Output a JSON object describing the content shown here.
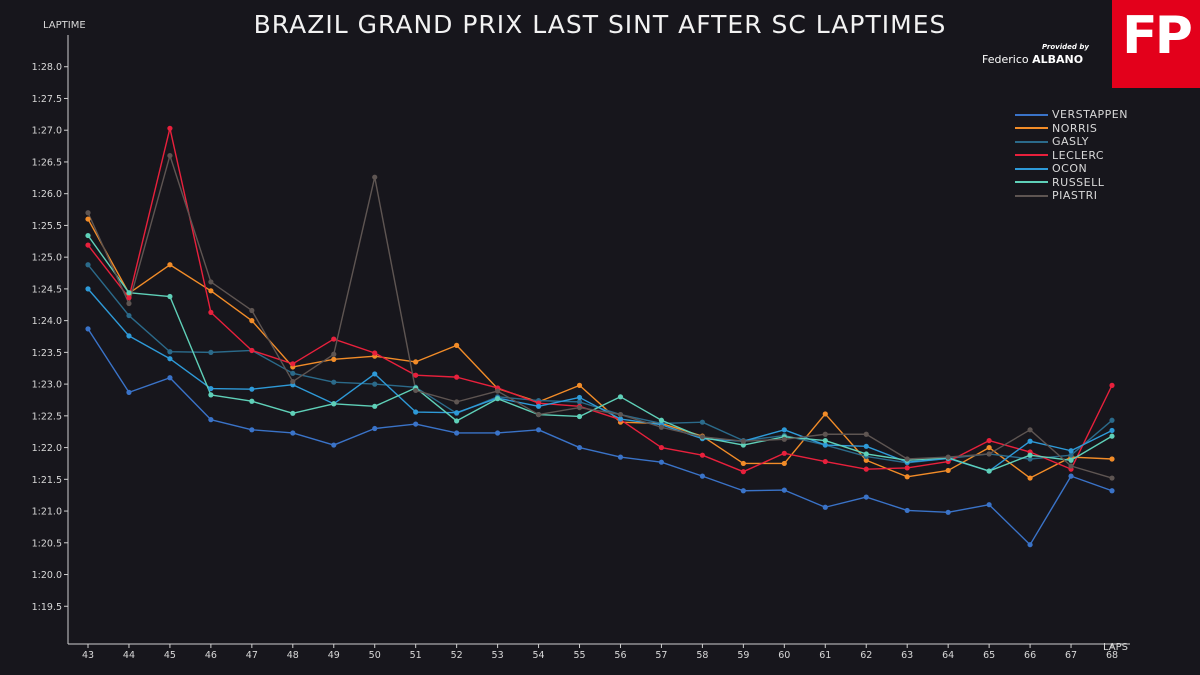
{
  "header": {
    "title": "BRAZIL GRAND PRIX LAST SINT AFTER SC LAPTIMES",
    "credit_small": "Provided by",
    "credit_first": "Federico ",
    "credit_last": "ALBANO",
    "logo_text": "FP"
  },
  "colors": {
    "background": "#17161c",
    "logo": "#e3001b",
    "axis": "#cfcfcf"
  },
  "chart_data": {
    "type": "line",
    "title": "BRAZIL GRAND PRIX LAST SINT AFTER SC LAPTIMES",
    "xlabel": "LAPS",
    "ylabel": "LAPTIME",
    "x": [
      43,
      44,
      45,
      46,
      47,
      48,
      49,
      50,
      51,
      52,
      53,
      54,
      55,
      56,
      57,
      58,
      59,
      60,
      61,
      62,
      63,
      64,
      65,
      66,
      67,
      68
    ],
    "x_ticks": [
      "43",
      "44",
      "45",
      "46",
      "47",
      "48",
      "49",
      "50",
      "51",
      "52",
      "53",
      "54",
      "55",
      "56",
      "57",
      "58",
      "59",
      "60",
      "61",
      "62",
      "63",
      "64",
      "65",
      "66",
      "67",
      "68"
    ],
    "ylim": [
      79.0,
      88.5
    ],
    "y_ticks": [
      {
        "value": 79.5,
        "label": "1:19.5"
      },
      {
        "value": 80.0,
        "label": "1:20.0"
      },
      {
        "value": 80.5,
        "label": "1:20.5"
      },
      {
        "value": 81.0,
        "label": "1:21.0"
      },
      {
        "value": 81.5,
        "label": "1:21.5"
      },
      {
        "value": 82.0,
        "label": "1:22.0"
      },
      {
        "value": 82.5,
        "label": "1:22.5"
      },
      {
        "value": 83.0,
        "label": "1:23.0"
      },
      {
        "value": 83.5,
        "label": "1:23.5"
      },
      {
        "value": 84.0,
        "label": "1:24.0"
      },
      {
        "value": 84.5,
        "label": "1:24.5"
      },
      {
        "value": 85.0,
        "label": "1:25.0"
      },
      {
        "value": 85.5,
        "label": "1:25.5"
      },
      {
        "value": 86.0,
        "label": "1:26.0"
      },
      {
        "value": 86.5,
        "label": "1:26.5"
      },
      {
        "value": 87.0,
        "label": "1:27.0"
      },
      {
        "value": 87.5,
        "label": "1:27.5"
      },
      {
        "value": 88.0,
        "label": "1:28.0"
      }
    ],
    "grid": false,
    "legend_position": "top-right",
    "series": [
      {
        "name": "VERSTAPPEN",
        "color": "#3a73c8",
        "values": [
          83.87,
          82.87,
          83.1,
          82.44,
          82.28,
          82.23,
          82.04,
          82.3,
          82.37,
          82.23,
          82.23,
          82.28,
          82.0,
          81.85,
          81.77,
          81.55,
          81.32,
          81.33,
          81.06,
          81.22,
          81.01,
          80.98,
          81.1,
          80.47,
          81.55,
          81.32
        ]
      },
      {
        "name": "NORRIS",
        "color": "#f28c28",
        "values": [
          85.6,
          84.43,
          84.88,
          84.47,
          84.0,
          83.27,
          83.39,
          83.44,
          83.35,
          83.61,
          82.93,
          82.72,
          82.98,
          82.4,
          82.38,
          82.18,
          81.75,
          81.75,
          82.53,
          81.8,
          81.54,
          81.64,
          82.0,
          81.52,
          81.85,
          81.82
        ]
      },
      {
        "name": "GASLY",
        "color": "#2b6a8a",
        "values": [
          84.88,
          84.08,
          83.51,
          83.5,
          83.53,
          83.17,
          83.03,
          83.0,
          82.95,
          82.54,
          82.8,
          82.74,
          82.72,
          82.52,
          82.38,
          82.4,
          82.11,
          82.19,
          82.04,
          81.86,
          81.76,
          81.83,
          81.9,
          81.82,
          81.88,
          82.43
        ]
      },
      {
        "name": "LECLERC",
        "color": "#e8203c",
        "values": [
          85.19,
          84.36,
          87.03,
          84.13,
          83.53,
          83.32,
          83.71,
          83.49,
          83.14,
          83.11,
          82.94,
          82.7,
          82.65,
          82.44,
          82.0,
          81.88,
          81.62,
          81.91,
          81.78,
          81.66,
          81.68,
          81.78,
          82.11,
          81.93,
          81.66,
          82.98
        ]
      },
      {
        "name": "OCON",
        "color": "#2e9ad8",
        "values": [
          84.5,
          83.76,
          83.4,
          82.93,
          82.92,
          82.99,
          82.69,
          83.16,
          82.56,
          82.55,
          82.78,
          82.65,
          82.79,
          82.45,
          82.36,
          82.14,
          82.1,
          82.28,
          82.04,
          82.02,
          81.77,
          81.83,
          81.63,
          82.1,
          81.95,
          82.27
        ]
      },
      {
        "name": "RUSSELL",
        "color": "#5fd0b8",
        "values": [
          85.34,
          84.44,
          84.38,
          82.83,
          82.73,
          82.54,
          82.69,
          82.65,
          82.94,
          82.42,
          82.77,
          82.52,
          82.49,
          82.8,
          82.43,
          82.16,
          82.04,
          82.17,
          82.11,
          81.9,
          81.8,
          81.84,
          81.63,
          81.88,
          81.8,
          82.18
        ]
      },
      {
        "name": "PIASTRI",
        "color": "#5e5552",
        "values": [
          85.7,
          84.27,
          86.6,
          84.61,
          84.16,
          83.04,
          83.47,
          86.26,
          82.9,
          82.72,
          82.89,
          82.52,
          82.63,
          82.52,
          82.32,
          82.17,
          82.1,
          82.13,
          82.21,
          82.21,
          81.82,
          81.85,
          81.9,
          82.28,
          81.71,
          81.52
        ]
      }
    ]
  }
}
